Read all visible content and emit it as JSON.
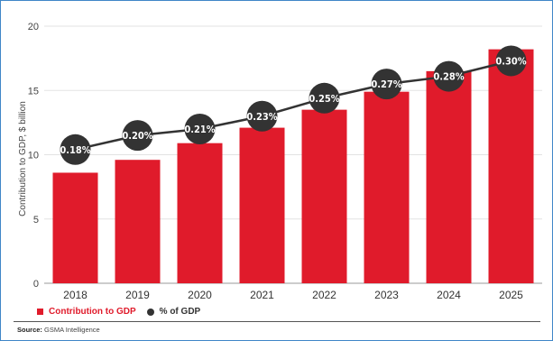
{
  "chart_data": {
    "type": "bar",
    "categories": [
      "2018",
      "2019",
      "2020",
      "2021",
      "2022",
      "2023",
      "2024",
      "2025"
    ],
    "series": [
      {
        "name": "Contribution to GDP",
        "type": "bar",
        "color": "#e01b2b",
        "values": [
          8.6,
          9.6,
          10.9,
          12.1,
          13.5,
          14.9,
          16.5,
          18.2
        ]
      },
      {
        "name": "% of GDP",
        "type": "line",
        "color": "#333333",
        "values": [
          10.4,
          11.5,
          12.0,
          13.0,
          14.4,
          15.5,
          16.1,
          17.3
        ],
        "labels": [
          "0.18%",
          "0.20%",
          "0.21%",
          "0.23%",
          "0.25%",
          "0.27%",
          "0.28%",
          "0.30%"
        ]
      }
    ],
    "ylabel": "Contribution to GDP, $ billion",
    "ylim": [
      0,
      20
    ],
    "yticks": [
      0,
      5,
      10,
      15,
      20
    ],
    "grid": true,
    "legend": "bottom-left"
  },
  "source": {
    "label": "Source:",
    "text": "GSMA Intelligence"
  }
}
